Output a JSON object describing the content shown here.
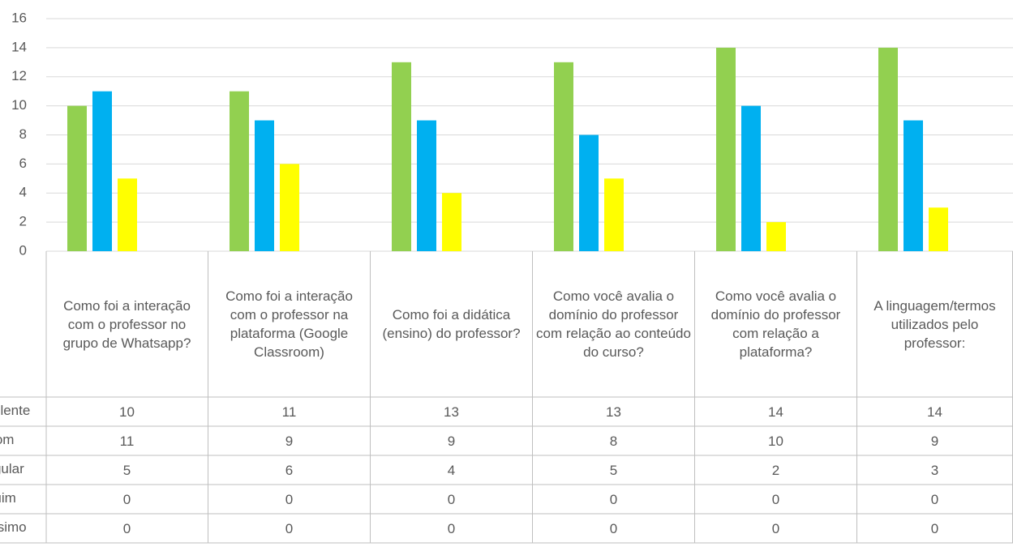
{
  "chart_data": {
    "type": "bar",
    "categories": [
      "Como foi a interação com o professor no grupo de Whatsapp?",
      "Como foi a interação com o professor na plataforma (Google Classroom)",
      "Como foi a didática (ensino) do professor?",
      "Como você avalia o domínio do professor com relação ao conteúdo do curso?",
      "Como você avalia o domínio do professor com relação a plataforma?",
      "A linguagem/termos utilizados pelo professor:"
    ],
    "series": [
      {
        "name": "Excelente",
        "color": "#92d050",
        "values": [
          10,
          11,
          13,
          13,
          14,
          14
        ]
      },
      {
        "name": "Bom",
        "color": "#00b0f0",
        "values": [
          11,
          9,
          9,
          8,
          10,
          9
        ]
      },
      {
        "name": "Regular",
        "color": "#ffff00",
        "values": [
          5,
          6,
          4,
          5,
          2,
          3
        ]
      },
      {
        "name": "Ruim",
        "color": "#7030a0",
        "values": [
          0,
          0,
          0,
          0,
          0,
          0
        ]
      },
      {
        "name": "Péssimo",
        "color": "#ff0000",
        "values": [
          0,
          0,
          0,
          0,
          0,
          0
        ]
      }
    ],
    "ylim": [
      0,
      16
    ],
    "yticks": [
      0,
      2,
      4,
      6,
      8,
      10,
      12,
      14,
      16
    ],
    "grid": true,
    "data_table": true
  }
}
